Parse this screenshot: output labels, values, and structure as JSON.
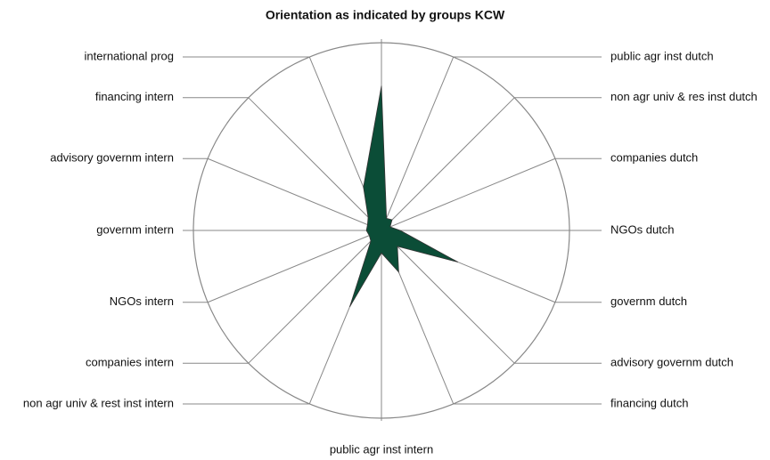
{
  "chart_data": {
    "type": "radar",
    "title": "Orientation as indicated by groups KCW",
    "categories": [
      null,
      "public agr inst dutch",
      "non agr univ & res inst dutch",
      "companies dutch",
      "NGOs dutch",
      "governm dutch",
      "advisory governm dutch",
      "financing dutch",
      "public agr inst intern",
      "non agr univ & rest inst intern",
      "companies intern",
      "NGOs intern",
      "governm intern",
      "advisory governm intern",
      "financing intern",
      "international prog"
    ],
    "values": [
      77,
      7,
      8,
      5,
      10,
      44,
      12,
      24,
      12,
      44,
      8,
      7,
      8,
      8,
      10,
      25
    ],
    "ylim": [
      0,
      100
    ],
    "color": "#0b4d37"
  }
}
